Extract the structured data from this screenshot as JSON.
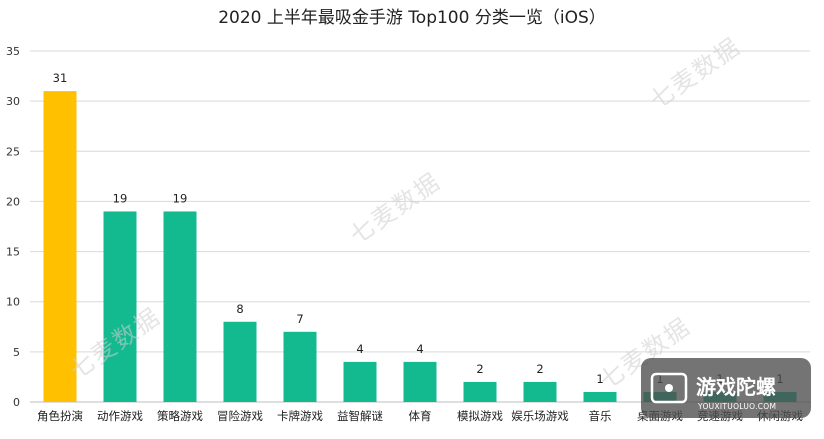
{
  "chart_data": {
    "type": "bar",
    "title": "2020 上半年最吸金手游 Top100 分类一览（iOS）",
    "categories": [
      "角色扮演",
      "动作游戏",
      "策略游戏",
      "冒险游戏",
      "卡牌游戏",
      "益智解谜",
      "体育",
      "模拟游戏",
      "娱乐场游戏",
      "音乐",
      "桌面游戏",
      "竞速游戏",
      "休闲游戏"
    ],
    "values": [
      31,
      19,
      19,
      8,
      7,
      4,
      4,
      2,
      2,
      1,
      1,
      1,
      1
    ],
    "highlight_index": 0,
    "colors": {
      "highlight": "#FFC000",
      "default": "#13B98F"
    },
    "xlabel": "",
    "ylabel": "",
    "ylim": [
      0,
      35
    ],
    "yticks": [
      0,
      5,
      10,
      15,
      20,
      25,
      30,
      35
    ],
    "grid": true,
    "data_labels": true,
    "legend": "none"
  },
  "watermark": {
    "text": "七麦数据"
  },
  "logo": {
    "name": "游戏陀螺",
    "url_text": "YOUXITUOLUO.COM"
  }
}
